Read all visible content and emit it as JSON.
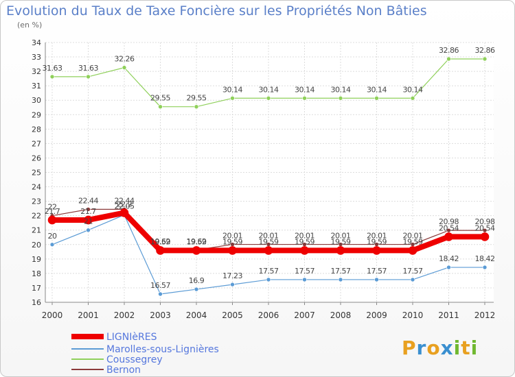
{
  "title": "Evolution du Taux de Taxe Foncière sur les Propriétés Non Bâties",
  "unit_label": "(en %)",
  "logo_text": "Proxiti",
  "chart_data": {
    "type": "line",
    "x": [
      "2000",
      "2001",
      "2002",
      "2003",
      "2004",
      "2005",
      "2006",
      "2007",
      "2008",
      "2009",
      "2010",
      "2011",
      "2012"
    ],
    "ylim": [
      16,
      34
    ],
    "yticks": [
      16,
      17,
      18,
      19,
      20,
      21,
      22,
      23,
      24,
      25,
      26,
      27,
      28,
      29,
      30,
      31,
      32,
      33,
      34
    ],
    "grid": true,
    "legend_position": "bottom-left",
    "series": [
      {
        "name": "LIGNIèRES",
        "color": "#ee0000",
        "width": 8,
        "values": [
          21.7,
          21.7,
          22.2,
          19.59,
          19.59,
          19.59,
          19.59,
          19.59,
          19.59,
          19.59,
          19.59,
          20.54,
          20.54
        ],
        "labels": [
          "21.7",
          "21.7",
          "22.2",
          "19.59",
          "19.59",
          "19.59",
          "19.59",
          "19.59",
          "19.59",
          "19.59",
          "19.59",
          "20.54",
          "20.54"
        ]
      },
      {
        "name": "Marolles-sous-Lignières",
        "color": "#5b9bd5",
        "width": 1.2,
        "values": [
          20,
          21,
          22.05,
          16.57,
          16.9,
          17.23,
          17.57,
          17.57,
          17.57,
          17.57,
          17.57,
          18.42,
          18.42
        ],
        "labels": [
          "20",
          "21",
          "22.05",
          "16.57",
          "16.9",
          "17.23",
          "17.57",
          "17.57",
          "17.57",
          "17.57",
          "17.57",
          "18.42",
          "18.42"
        ]
      },
      {
        "name": "Coussegrey",
        "color": "#8fd05a",
        "width": 1.2,
        "values": [
          31.63,
          31.63,
          32.26,
          29.55,
          29.55,
          30.14,
          30.14,
          30.14,
          30.14,
          30.14,
          30.14,
          32.86,
          32.86
        ],
        "labels": [
          "31.63",
          "31.63",
          "32.26",
          "29.55",
          "29.55",
          "30.14",
          "30.14",
          "30.14",
          "30.14",
          "30.14",
          "30.14",
          "32.86",
          "32.86"
        ]
      },
      {
        "name": "Bernon",
        "color": "#8b3a3a",
        "width": 1.2,
        "values": [
          22,
          22.44,
          22.44,
          19.62,
          19.62,
          20.01,
          20.01,
          20.01,
          20.01,
          20.01,
          20.01,
          20.98,
          20.98
        ],
        "labels": [
          "22",
          "22.44",
          "22.44",
          "19.62",
          "19.62",
          "20.01",
          "20.01",
          "20.01",
          "20.01",
          "20.01",
          "20.01",
          "20.98",
          "20.98"
        ]
      }
    ]
  }
}
